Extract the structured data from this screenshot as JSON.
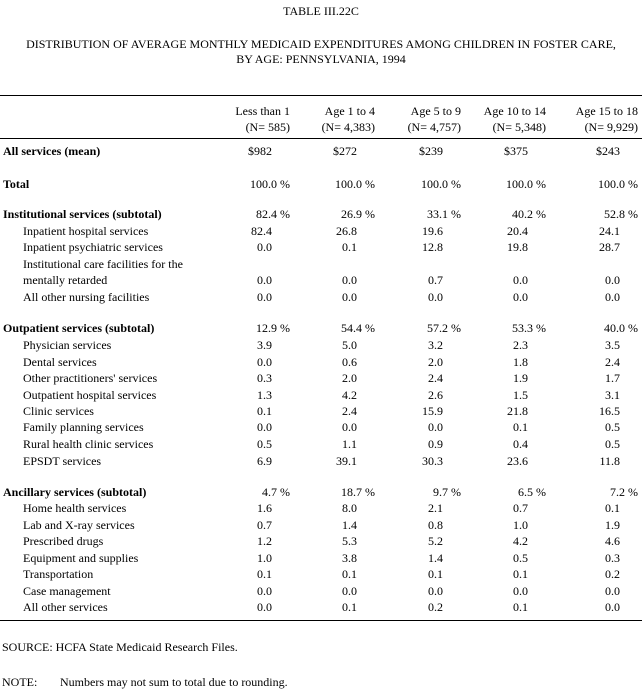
{
  "title": "TABLE III.22C",
  "subtitle": [
    "DISTRIBUTION OF AVERAGE MONTHLY MEDICAID EXPENDITURES AMONG CHILDREN IN FOSTER CARE,",
    "BY AGE:  PENNSYLVANIA, 1994"
  ],
  "table": {
    "columns": [
      [
        "Less than 1",
        "(N= 585)"
      ],
      [
        "Age 1 to 4",
        "(N= 4,383)"
      ],
      [
        "Age 5 to 9",
        "(N= 4,757)"
      ],
      [
        "Age 10 to 14",
        "(N= 5,348)"
      ],
      [
        "Age 15 to 18",
        "(N= 9,929)"
      ]
    ],
    "rows": [
      {
        "label": "All services (mean)",
        "bold": true,
        "cells": [
          "$982",
          "$272",
          "$239",
          "$375",
          "$243"
        ]
      },
      {
        "label": "Total",
        "bold": true,
        "cells": [
          "100.0 %",
          "100.0 %",
          "100.0 %",
          "100.0 %",
          "100.0 %"
        ]
      },
      {
        "label": "Institutional services (subtotal)",
        "bold": true,
        "cells": [
          "82.4 %",
          "26.9 %",
          "33.1 %",
          "40.2 %",
          "52.8 %"
        ]
      },
      {
        "label": "Inpatient hospital services",
        "cells": [
          "82.4",
          "26.8",
          "19.6",
          "20.4",
          "24.1"
        ]
      },
      {
        "label": "Inpatient psychiatric services",
        "cells": [
          "0.0",
          "0.1",
          "12.8",
          "19.8",
          "28.7"
        ]
      },
      {
        "label": [
          "Institutional care facilities for the",
          "mentally retarded"
        ],
        "cells": [
          "0.0",
          "0.0",
          "0.7",
          "0.0",
          "0.0"
        ]
      },
      {
        "label": "All other nursing facilities",
        "cells": [
          "0.0",
          "0.0",
          "0.0",
          "0.0",
          "0.0"
        ]
      },
      {
        "label": "Outpatient services (subtotal)",
        "bold": true,
        "cells": [
          "12.9 %",
          "54.4 %",
          "57.2 %",
          "53.3 %",
          "40.0 %"
        ]
      },
      {
        "label": "Physician services",
        "cells": [
          "3.9",
          "5.0",
          "3.2",
          "2.3",
          "3.5"
        ]
      },
      {
        "label": "Dental services",
        "cells": [
          "0.0",
          "0.6",
          "2.0",
          "1.8",
          "2.4"
        ]
      },
      {
        "label": "Other practitioners' services",
        "cells": [
          "0.3",
          "2.0",
          "2.4",
          "1.9",
          "1.7"
        ]
      },
      {
        "label": "Outpatient hospital services",
        "cells": [
          "1.3",
          "4.2",
          "2.6",
          "1.5",
          "3.1"
        ]
      },
      {
        "label": "Clinic services",
        "cells": [
          "0.1",
          "2.4",
          "15.9",
          "21.8",
          "16.5"
        ]
      },
      {
        "label": "Family planning services",
        "cells": [
          "0.0",
          "0.0",
          "0.0",
          "0.1",
          "0.5"
        ]
      },
      {
        "label": "Rural health clinic services",
        "cells": [
          "0.5",
          "1.1",
          "0.9",
          "0.4",
          "0.5"
        ]
      },
      {
        "label": "EPSDT services",
        "cells": [
          "6.9",
          "39.1",
          "30.3",
          "23.6",
          "11.8"
        ]
      },
      {
        "label": "Ancillary services (subtotal)",
        "bold": true,
        "cells": [
          "4.7 %",
          "18.7 %",
          "9.7 %",
          "6.5 %",
          "7.2 %"
        ]
      },
      {
        "label": "Home health services",
        "cells": [
          "1.6",
          "8.0",
          "2.1",
          "0.7",
          "0.1"
        ]
      },
      {
        "label": "Lab and X-ray services",
        "cells": [
          "0.7",
          "1.4",
          "0.8",
          "1.0",
          "1.9"
        ]
      },
      {
        "label": "Prescribed drugs",
        "cells": [
          "1.2",
          "5.3",
          "5.2",
          "4.2",
          "4.6"
        ]
      },
      {
        "label": "Equipment and supplies",
        "cells": [
          "1.0",
          "3.8",
          "1.4",
          "0.5",
          "0.3"
        ]
      },
      {
        "label": "Transportation",
        "cells": [
          "0.1",
          "0.1",
          "0.1",
          "0.1",
          "0.2"
        ]
      },
      {
        "label": "Case management",
        "cells": [
          "0.0",
          "0.0",
          "0.0",
          "0.0",
          "0.0"
        ]
      },
      {
        "label": "All other services",
        "cells": [
          "0.0",
          "0.1",
          "0.2",
          "0.1",
          "0.0"
        ]
      }
    ]
  },
  "source": "SOURCE:  HCFA State Medicaid Research Files.",
  "note": {
    "label": "NOTE:",
    "text": "Numbers may not sum to total due to rounding."
  }
}
